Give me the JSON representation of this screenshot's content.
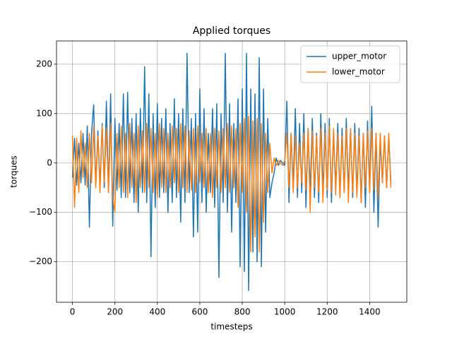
{
  "chart_data": {
    "type": "line",
    "title": "Applied torques",
    "xlabel": "timesteps",
    "ylabel": "torques",
    "x": [
      0,
      10,
      20,
      30,
      40,
      50,
      60,
      70,
      80,
      90,
      100,
      110,
      120,
      130,
      140,
      150,
      160,
      170,
      180,
      190,
      200,
      210,
      220,
      230,
      240,
      250,
      260,
      270,
      280,
      290,
      300,
      310,
      320,
      330,
      340,
      350,
      360,
      370,
      380,
      390,
      400,
      410,
      420,
      430,
      440,
      450,
      460,
      470,
      480,
      490,
      500,
      510,
      520,
      530,
      540,
      550,
      560,
      570,
      580,
      590,
      600,
      610,
      620,
      630,
      640,
      650,
      660,
      670,
      680,
      690,
      700,
      710,
      720,
      730,
      740,
      750,
      760,
      770,
      780,
      790,
      800,
      810,
      820,
      830,
      840,
      850,
      860,
      870,
      880,
      890,
      900,
      910,
      920,
      930,
      940,
      950,
      960,
      970,
      980,
      990,
      1000,
      1010,
      1020,
      1030,
      1040,
      1050,
      1060,
      1070,
      1080,
      1090,
      1100,
      1110,
      1120,
      1130,
      1140,
      1150,
      1160,
      1170,
      1180,
      1190,
      1200,
      1210,
      1220,
      1230,
      1240,
      1250,
      1260,
      1270,
      1280,
      1290,
      1300,
      1310,
      1320,
      1330,
      1340,
      1350,
      1360,
      1370,
      1380,
      1390,
      1400,
      1410,
      1420,
      1430,
      1440,
      1450,
      1460,
      1470,
      1480,
      1490,
      1500
    ],
    "series": [
      {
        "name": "upper_motor",
        "color": "#1f77b4",
        "values": [
          -30,
          50,
          -45,
          40,
          -40,
          60,
          -45,
          75,
          -130,
          60,
          118,
          -45,
          65,
          -50,
          80,
          -50,
          125,
          -60,
          140,
          -128,
          90,
          -55,
          80,
          -70,
          140,
          -70,
          143,
          -60,
          90,
          -80,
          100,
          -100,
          110,
          -60,
          195,
          -80,
          140,
          -190,
          100,
          -90,
          120,
          -70,
          90,
          -60,
          110,
          -100,
          80,
          -80,
          130,
          -70,
          100,
          -120,
          110,
          -80,
          222,
          -60,
          90,
          -150,
          100,
          -140,
          150,
          -80,
          110,
          -100,
          60,
          -60,
          110,
          -90,
          120,
          -232,
          100,
          -80,
          222,
          -100,
          120,
          -140,
          80,
          -80,
          130,
          -210,
          150,
          -220,
          222,
          -258,
          150,
          -180,
          140,
          -200,
          213,
          -210,
          150,
          -140,
          90,
          -70,
          -40,
          -20,
          10,
          -5,
          5,
          0,
          -5,
          125,
          -80,
          60,
          -50,
          110,
          -70,
          80,
          -60,
          100,
          -90,
          70,
          -60,
          90,
          -70,
          60,
          -80,
          100,
          -60,
          80,
          -70,
          90,
          -80,
          60,
          -50,
          80,
          -70,
          70,
          -60,
          90,
          -60,
          70,
          -70,
          80,
          -60,
          70,
          -80,
          60,
          -90,
          85,
          -60,
          115,
          -100,
          60,
          -130,
          50,
          -40,
          55,
          -50,
          55,
          -40
        ]
      },
      {
        "name": "lower_motor",
        "color": "#ff7f0e",
        "values": [
          55,
          -90,
          50,
          -60,
          65,
          -30,
          40,
          -50,
          60,
          -40,
          75,
          -50,
          55,
          -60,
          75,
          -40,
          70,
          -60,
          80,
          -70,
          -100,
          60,
          -50,
          75,
          -60,
          60,
          -70,
          80,
          -50,
          60,
          -80,
          75,
          -50,
          65,
          -60,
          80,
          -50,
          70,
          -60,
          60,
          -70,
          80,
          -50,
          70,
          -60,
          60,
          -50,
          75,
          -40,
          70,
          -60,
          80,
          -50,
          75,
          -60,
          65,
          -55,
          70,
          -60,
          75,
          -40,
          60,
          -50,
          70,
          -60,
          60,
          -70,
          70,
          -50,
          65,
          -60,
          70,
          -50,
          80,
          -60,
          75,
          -50,
          70,
          -90,
          80,
          -60,
          90,
          -100,
          95,
          -180,
          85,
          -150,
          90,
          -180,
          80,
          -120,
          60,
          -60,
          40,
          -20,
          10,
          -5,
          5,
          0,
          -5,
          5,
          60,
          -50,
          60,
          -60,
          55,
          -50,
          40,
          -40,
          60,
          -55,
          70,
          -100,
          65,
          -50,
          55,
          -60,
          70,
          -80,
          60,
          -55,
          75,
          -60,
          70,
          -65,
          60,
          -70,
          55,
          -60,
          70,
          -80,
          70,
          -60,
          60,
          -70,
          55,
          -80,
          60,
          -50,
          65,
          -60,
          70,
          -55,
          60,
          -70,
          60,
          -40,
          55,
          -50,
          60,
          -50
        ]
      }
    ],
    "xlim": [
      -75,
      1575
    ],
    "ylim": [
      -282,
      247
    ],
    "xticks": [
      0,
      200,
      400,
      600,
      800,
      1000,
      1200,
      1400
    ],
    "yticks": [
      {
        "value": -200,
        "label": "−200"
      },
      {
        "value": -100,
        "label": "−100"
      },
      0,
      100,
      200
    ],
    "grid": true,
    "legend": "upper right"
  }
}
